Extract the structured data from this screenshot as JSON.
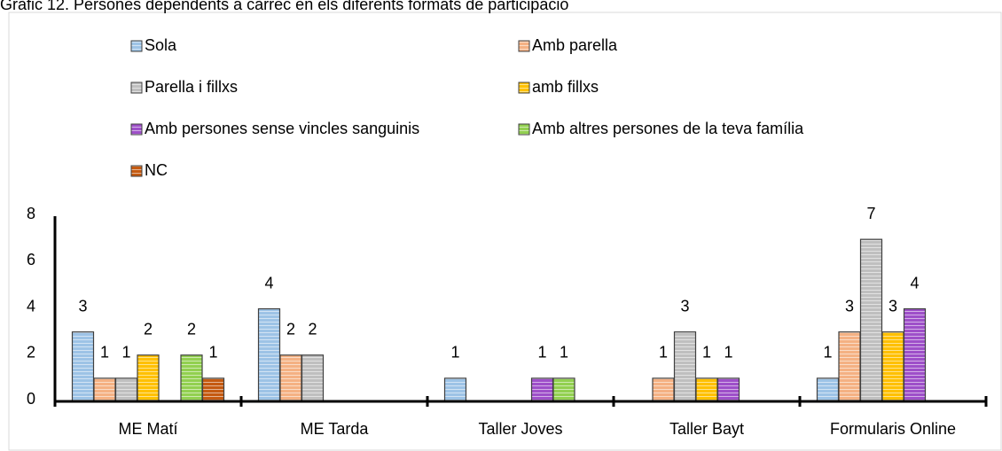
{
  "chart_data": {
    "type": "bar",
    "title": "Gràfic 12. Persones dependents a càrrec en els diferents formats de participació",
    "categories": [
      "ME Matí",
      "ME Tarda",
      "Taller Joves",
      "Taller Bayt",
      "Formularis Online"
    ],
    "series": [
      {
        "name": "Sola",
        "color": "#9dc3e6",
        "values": [
          3,
          4,
          1,
          null,
          1
        ]
      },
      {
        "name": "Amb parella",
        "color": "#f4b183",
        "values": [
          1,
          2,
          null,
          1,
          3
        ]
      },
      {
        "name": "Parella  i fillxs",
        "color": "#bfbfbf",
        "values": [
          1,
          2,
          null,
          3,
          7
        ]
      },
      {
        "name": "amb fillxs",
        "color": "#ffc000",
        "values": [
          2,
          null,
          null,
          1,
          3
        ]
      },
      {
        "name": "Amb persones sense vincles sanguinis",
        "color": "#9e4fc9",
        "values": [
          null,
          null,
          1,
          1,
          4
        ]
      },
      {
        "name": "Amb altres persones de la teva família",
        "color": "#92d050",
        "values": [
          2,
          null,
          1,
          null,
          null
        ]
      },
      {
        "name": "NC",
        "color": "#c55a11",
        "values": [
          1,
          null,
          null,
          null,
          null
        ]
      }
    ],
    "ylim": [
      0,
      8
    ],
    "yticks": [
      0,
      2,
      4,
      6,
      8
    ],
    "grid": false
  }
}
